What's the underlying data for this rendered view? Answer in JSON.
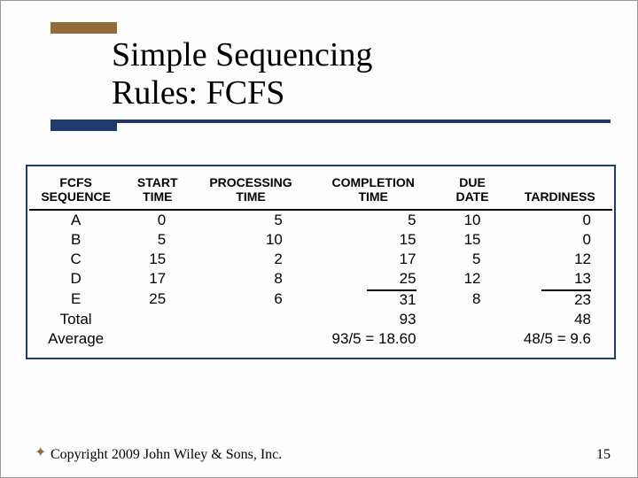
{
  "title_line1": "Simple Sequencing",
  "title_line2": "Rules: FCFS",
  "headers": {
    "seq1": "FCFS",
    "seq2": "SEQUENCE",
    "start1": "START",
    "start2": "TIME",
    "proc1": "PROCESSING",
    "proc2": "TIME",
    "comp1": "COMPLETION",
    "comp2": "TIME",
    "due1": "DUE",
    "due2": "DATE",
    "tard": "TARDINESS"
  },
  "rows": [
    {
      "seq": "A",
      "start": "0",
      "proc": "5",
      "comp": "5",
      "due": "10",
      "tard": "0"
    },
    {
      "seq": "B",
      "start": "5",
      "proc": "10",
      "comp": "15",
      "due": "15",
      "tard": "0"
    },
    {
      "seq": "C",
      "start": "15",
      "proc": "2",
      "comp": "17",
      "due": "5",
      "tard": "12"
    },
    {
      "seq": "D",
      "start": "17",
      "proc": "8",
      "comp": "25",
      "due": "12",
      "tard": "13"
    },
    {
      "seq": "E",
      "start": "25",
      "proc": "6",
      "comp": "31",
      "due": "8",
      "tard": "23"
    }
  ],
  "total_label": "Total",
  "total_comp": "93",
  "total_tard": "48",
  "avg_label": "Average",
  "avg_comp": "93/5 = 18.60",
  "avg_tard": "48/5 = 9.6",
  "footer": "Copyright 2009 John Wiley & Sons, Inc.",
  "pagenum": "15",
  "colors": {
    "accent_brown": "#946b3b",
    "rule_navy": "#1f3a6d",
    "bg": "#fdfdfd"
  }
}
